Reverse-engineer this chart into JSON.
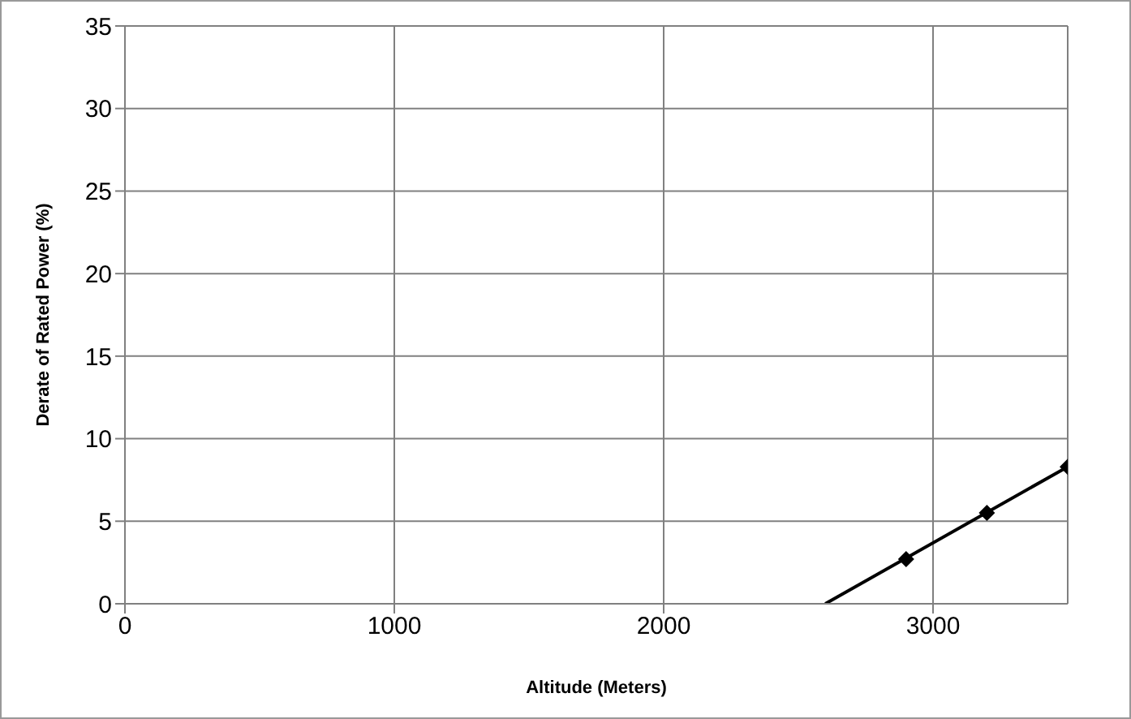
{
  "chart_data": {
    "type": "line",
    "xlabel": "Altitude (Meters)",
    "ylabel": "Derate of Rated Power (%)",
    "xlim": [
      0,
      3500
    ],
    "xticks": [
      0,
      1000,
      2000,
      3000
    ],
    "ylim": [
      0,
      35
    ],
    "yticks": [
      0,
      5,
      10,
      15,
      20,
      25,
      30,
      35
    ],
    "grid": true,
    "series": [
      {
        "color": "#000000",
        "x": [
          2600,
          3500
        ],
        "values": [
          0,
          8.3
        ],
        "marker": "none"
      },
      {
        "type": "scatter",
        "color": "#000000",
        "x": [
          2900,
          3200,
          3500
        ],
        "values": [
          2.7,
          5.5,
          8.3
        ],
        "marker": "diamond"
      }
    ]
  }
}
